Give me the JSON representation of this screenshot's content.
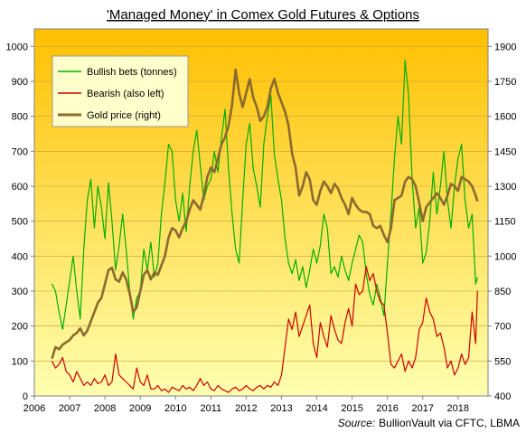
{
  "chart_data": {
    "type": "line",
    "title": "'Managed Money' in Comex Gold Futures & Options",
    "source_label": "Source:",
    "source_text": "BullionVault via CFTC, LBMA",
    "x_ticks": [
      "2006",
      "2007",
      "2008",
      "2009",
      "2010",
      "2011",
      "2012",
      "2013",
      "2014",
      "2015",
      "2016",
      "2017",
      "2018"
    ],
    "xlim": [
      2006,
      2018.85
    ],
    "y_left": {
      "ticks": [
        "0",
        "100",
        "200",
        "300",
        "400",
        "500",
        "600",
        "700",
        "800",
        "900",
        "1000"
      ],
      "lim": [
        0,
        1050
      ]
    },
    "y_right": {
      "ticks": [
        "400",
        "550",
        "700",
        "850",
        "1000",
        "1150",
        "1300",
        "1450",
        "1600",
        "1750",
        "1900"
      ],
      "lim": [
        400,
        1975
      ]
    },
    "background_gradient": [
      "#FFC000",
      "#FFFFB0"
    ],
    "legend_position": "top-left",
    "series": [
      {
        "name": "Bullish bets (tonnes)",
        "axis": "left",
        "color": "#00B000",
        "x": [
          2006.5,
          2006.6,
          2006.7,
          2006.8,
          2006.9,
          2007.0,
          2007.1,
          2007.2,
          2007.3,
          2007.4,
          2007.5,
          2007.6,
          2007.7,
          2007.8,
          2007.9,
          2008.0,
          2008.1,
          2008.2,
          2008.3,
          2008.4,
          2008.5,
          2008.6,
          2008.7,
          2008.8,
          2008.9,
          2009.0,
          2009.1,
          2009.2,
          2009.3,
          2009.4,
          2009.5,
          2009.6,
          2009.7,
          2009.8,
          2009.9,
          2010.0,
          2010.1,
          2010.2,
          2010.3,
          2010.4,
          2010.5,
          2010.6,
          2010.7,
          2010.8,
          2010.9,
          2011.0,
          2011.1,
          2011.2,
          2011.3,
          2011.4,
          2011.5,
          2011.6,
          2011.7,
          2011.8,
          2011.9,
          2012.0,
          2012.1,
          2012.2,
          2012.3,
          2012.4,
          2012.5,
          2012.6,
          2012.7,
          2012.8,
          2012.9,
          2013.0,
          2013.1,
          2013.2,
          2013.3,
          2013.4,
          2013.5,
          2013.6,
          2013.7,
          2013.8,
          2013.9,
          2014.0,
          2014.1,
          2014.2,
          2014.3,
          2014.4,
          2014.5,
          2014.6,
          2014.7,
          2014.8,
          2014.9,
          2015.0,
          2015.1,
          2015.2,
          2015.3,
          2015.4,
          2015.5,
          2015.6,
          2015.7,
          2015.8,
          2015.9,
          2016.0,
          2016.1,
          2016.2,
          2016.3,
          2016.4,
          2016.5,
          2016.6,
          2016.7,
          2016.8,
          2016.9,
          2017.0,
          2017.1,
          2017.2,
          2017.3,
          2017.4,
          2017.5,
          2017.6,
          2017.7,
          2017.8,
          2017.9,
          2018.0,
          2018.1,
          2018.2,
          2018.3,
          2018.4,
          2018.5,
          2018.55
        ],
        "values": [
          320,
          300,
          240,
          190,
          260,
          330,
          400,
          300,
          220,
          420,
          560,
          620,
          480,
          600,
          540,
          450,
          610,
          500,
          360,
          430,
          520,
          420,
          300,
          220,
          280,
          300,
          420,
          360,
          440,
          340,
          380,
          520,
          610,
          720,
          700,
          560,
          500,
          580,
          470,
          600,
          700,
          760,
          660,
          560,
          600,
          620,
          700,
          640,
          740,
          820,
          650,
          520,
          420,
          380,
          560,
          720,
          780,
          650,
          600,
          540,
          720,
          800,
          860,
          690,
          620,
          560,
          450,
          380,
          350,
          390,
          330,
          370,
          310,
          360,
          420,
          380,
          430,
          520,
          480,
          350,
          370,
          340,
          400,
          360,
          330,
          380,
          420,
          460,
          440,
          350,
          290,
          260,
          320,
          280,
          230,
          380,
          520,
          680,
          800,
          720,
          960,
          860,
          620,
          480,
          540,
          380,
          410,
          500,
          640,
          520,
          600,
          700,
          560,
          480,
          600,
          680,
          720,
          560,
          480,
          520,
          320,
          340
        ]
      },
      {
        "name": "Bearish (also left)",
        "axis": "left",
        "color": "#CC0000",
        "x": [
          2006.5,
          2006.6,
          2006.7,
          2006.8,
          2006.9,
          2007.0,
          2007.1,
          2007.2,
          2007.3,
          2007.4,
          2007.5,
          2007.6,
          2007.7,
          2007.8,
          2007.9,
          2008.0,
          2008.1,
          2008.2,
          2008.3,
          2008.4,
          2008.5,
          2008.6,
          2008.7,
          2008.8,
          2008.9,
          2009.0,
          2009.1,
          2009.2,
          2009.3,
          2009.4,
          2009.5,
          2009.6,
          2009.7,
          2009.8,
          2009.9,
          2010.0,
          2010.1,
          2010.2,
          2010.3,
          2010.4,
          2010.5,
          2010.6,
          2010.7,
          2010.8,
          2010.9,
          2011.0,
          2011.1,
          2011.2,
          2011.3,
          2011.4,
          2011.5,
          2011.6,
          2011.7,
          2011.8,
          2011.9,
          2012.0,
          2012.1,
          2012.2,
          2012.3,
          2012.4,
          2012.5,
          2012.6,
          2012.7,
          2012.8,
          2012.9,
          2013.0,
          2013.1,
          2013.2,
          2013.3,
          2013.4,
          2013.5,
          2013.6,
          2013.7,
          2013.8,
          2013.9,
          2014.0,
          2014.1,
          2014.2,
          2014.3,
          2014.4,
          2014.5,
          2014.6,
          2014.7,
          2014.8,
          2014.9,
          2015.0,
          2015.1,
          2015.2,
          2015.3,
          2015.4,
          2015.5,
          2015.6,
          2015.7,
          2015.8,
          2015.9,
          2016.0,
          2016.1,
          2016.2,
          2016.3,
          2016.4,
          2016.5,
          2016.6,
          2016.7,
          2016.8,
          2016.9,
          2017.0,
          2017.1,
          2017.2,
          2017.3,
          2017.4,
          2017.5,
          2017.6,
          2017.7,
          2017.8,
          2017.9,
          2018.0,
          2018.1,
          2018.2,
          2018.3,
          2018.4,
          2018.5,
          2018.55
        ],
        "values": [
          100,
          80,
          90,
          110,
          70,
          60,
          40,
          70,
          50,
          30,
          40,
          30,
          50,
          35,
          40,
          60,
          30,
          40,
          120,
          60,
          50,
          40,
          30,
          20,
          80,
          40,
          30,
          60,
          20,
          20,
          30,
          15,
          20,
          10,
          25,
          20,
          15,
          30,
          20,
          25,
          15,
          30,
          50,
          30,
          40,
          20,
          15,
          30,
          20,
          15,
          10,
          20,
          25,
          15,
          20,
          30,
          20,
          15,
          25,
          30,
          20,
          30,
          25,
          40,
          30,
          60,
          140,
          220,
          190,
          240,
          170,
          200,
          230,
          260,
          150,
          110,
          210,
          170,
          140,
          230,
          190,
          160,
          150,
          210,
          250,
          200,
          320,
          290,
          300,
          370,
          330,
          350,
          300,
          270,
          260,
          180,
          90,
          80,
          100,
          120,
          70,
          100,
          80,
          110,
          190,
          210,
          280,
          240,
          220,
          170,
          180,
          140,
          80,
          100,
          60,
          80,
          120,
          90,
          110,
          240,
          150,
          300
        ]
      },
      {
        "name": "Gold price (right)",
        "axis": "right",
        "color": "#8B6A2E",
        "x": [
          2006.5,
          2006.6,
          2006.7,
          2006.8,
          2006.9,
          2007.0,
          2007.1,
          2007.2,
          2007.3,
          2007.4,
          2007.5,
          2007.6,
          2007.7,
          2007.8,
          2007.9,
          2008.0,
          2008.1,
          2008.2,
          2008.3,
          2008.4,
          2008.5,
          2008.6,
          2008.7,
          2008.8,
          2008.9,
          2009.0,
          2009.1,
          2009.2,
          2009.3,
          2009.4,
          2009.5,
          2009.6,
          2009.7,
          2009.8,
          2009.9,
          2010.0,
          2010.1,
          2010.2,
          2010.3,
          2010.4,
          2010.5,
          2010.6,
          2010.7,
          2010.8,
          2010.9,
          2011.0,
          2011.1,
          2011.2,
          2011.3,
          2011.4,
          2011.5,
          2011.6,
          2011.7,
          2011.8,
          2011.9,
          2012.0,
          2012.1,
          2012.2,
          2012.3,
          2012.4,
          2012.5,
          2012.6,
          2012.7,
          2012.8,
          2012.9,
          2013.0,
          2013.1,
          2013.2,
          2013.3,
          2013.4,
          2013.5,
          2013.6,
          2013.7,
          2013.8,
          2013.9,
          2014.0,
          2014.1,
          2014.2,
          2014.3,
          2014.4,
          2014.5,
          2014.6,
          2014.7,
          2014.8,
          2014.9,
          2015.0,
          2015.1,
          2015.2,
          2015.3,
          2015.4,
          2015.5,
          2015.6,
          2015.7,
          2015.8,
          2015.9,
          2016.0,
          2016.1,
          2016.2,
          2016.3,
          2016.4,
          2016.5,
          2016.6,
          2016.7,
          2016.8,
          2016.9,
          2017.0,
          2017.1,
          2017.2,
          2017.3,
          2017.4,
          2017.5,
          2017.6,
          2017.7,
          2017.8,
          2017.9,
          2018.0,
          2018.1,
          2018.2,
          2018.3,
          2018.4,
          2018.5,
          2018.55
        ],
        "values": [
          560,
          610,
          600,
          620,
          630,
          640,
          660,
          670,
          690,
          660,
          680,
          720,
          760,
          800,
          820,
          880,
          940,
          950,
          900,
          890,
          930,
          900,
          840,
          760,
          780,
          850,
          920,
          940,
          900,
          930,
          920,
          960,
          1000,
          1080,
          1120,
          1110,
          1080,
          1120,
          1150,
          1200,
          1240,
          1220,
          1200,
          1260,
          1340,
          1380,
          1360,
          1420,
          1480,
          1510,
          1560,
          1650,
          1800,
          1700,
          1640,
          1700,
          1760,
          1680,
          1640,
          1580,
          1600,
          1640,
          1720,
          1760,
          1700,
          1660,
          1620,
          1560,
          1440,
          1380,
          1260,
          1300,
          1360,
          1330,
          1240,
          1220,
          1280,
          1320,
          1300,
          1270,
          1310,
          1290,
          1250,
          1220,
          1180,
          1250,
          1220,
          1200,
          1190,
          1190,
          1180,
          1130,
          1120,
          1130,
          1090,
          1060,
          1120,
          1240,
          1250,
          1260,
          1320,
          1340,
          1330,
          1300,
          1230,
          1150,
          1210,
          1230,
          1250,
          1270,
          1250,
          1220,
          1260,
          1310,
          1300,
          1280,
          1340,
          1330,
          1320,
          1300,
          1260,
          1235
        ]
      }
    ]
  }
}
